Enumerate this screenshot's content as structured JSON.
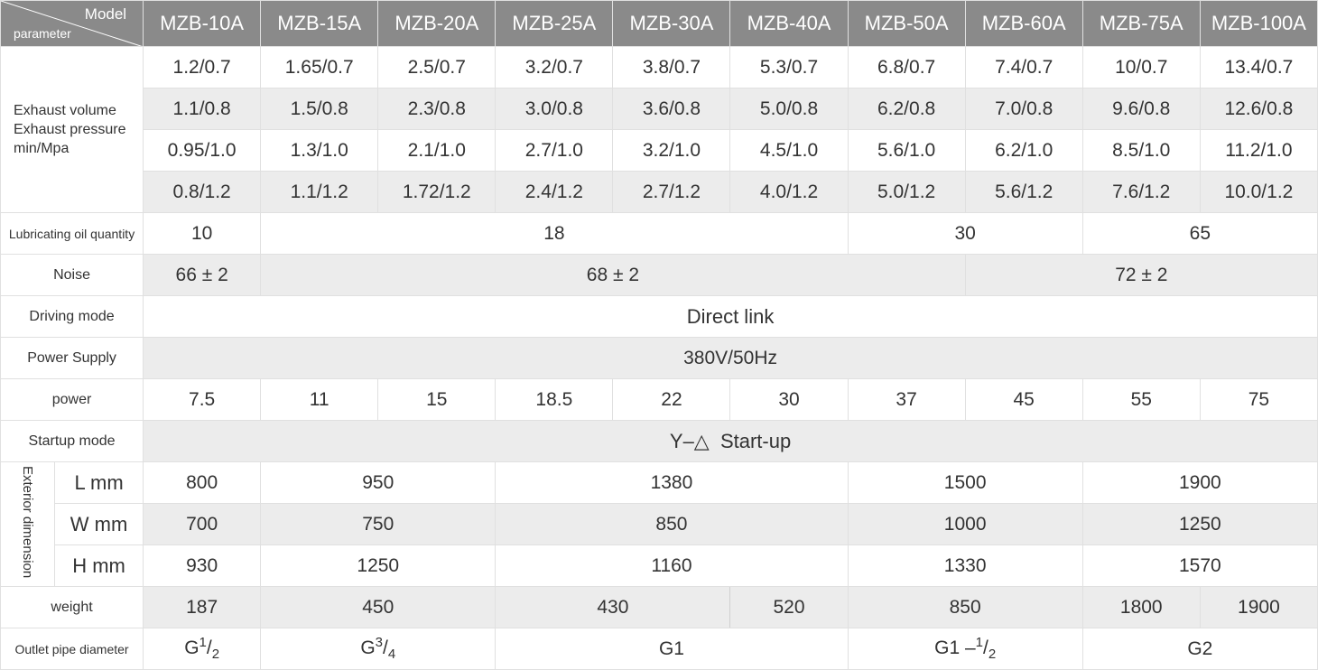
{
  "header": {
    "model_label": "Model",
    "parameter_label": "parameter",
    "models": [
      "MZB-10A",
      "MZB-15A",
      "MZB-20A",
      "MZB-25A",
      "MZB-30A",
      "MZB-40A",
      "MZB-50A",
      "MZB-60A",
      "MZB-75A",
      "MZB-100A"
    ]
  },
  "exhaust": {
    "label_line1": "Exhaust volume",
    "label_line2": "Exhaust pressure",
    "label_line3": "min/Mpa",
    "rows": [
      [
        "1.2/0.7",
        "1.65/0.7",
        "2.5/0.7",
        "3.2/0.7",
        "3.8/0.7",
        "5.3/0.7",
        "6.8/0.7",
        "7.4/0.7",
        "10/0.7",
        "13.4/0.7"
      ],
      [
        "1.1/0.8",
        "1.5/0.8",
        "2.3/0.8",
        "3.0/0.8",
        "3.6/0.8",
        "5.0/0.8",
        "6.2/0.8",
        "7.0/0.8",
        "9.6/0.8",
        "12.6/0.8"
      ],
      [
        "0.95/1.0",
        "1.3/1.0",
        "2.1/1.0",
        "2.7/1.0",
        "3.2/1.0",
        "4.5/1.0",
        "5.6/1.0",
        "6.2/1.0",
        "8.5/1.0",
        "11.2/1.0"
      ],
      [
        "0.8/1.2",
        "1.1/1.2",
        "1.72/1.2",
        "2.4/1.2",
        "2.7/1.2",
        "4.0/1.2",
        "5.0/1.2",
        "5.6/1.2",
        "7.6/1.2",
        "10.0/1.2"
      ]
    ]
  },
  "lubricating": {
    "label": "Lubricating oil quantity",
    "values": [
      "10",
      "18",
      "30",
      "65"
    ]
  },
  "noise": {
    "label": "Noise",
    "values": [
      "66 ± 2",
      "68 ± 2",
      "72 ± 2"
    ]
  },
  "driving": {
    "label": "Driving mode",
    "value": "Direct link"
  },
  "power_supply": {
    "label": "Power Supply",
    "value": "380V/50Hz"
  },
  "power": {
    "label": "power",
    "values": [
      "7.5",
      "11",
      "15",
      "18.5",
      "22",
      "30",
      "37",
      "45",
      "55",
      "75"
    ]
  },
  "startup": {
    "label": "Startup mode",
    "value": "Y–△  Start-up"
  },
  "exterior": {
    "label": "Exterior dimension",
    "l_label": "L mm",
    "l_values": [
      "800",
      "950",
      "1380",
      "1500",
      "1900"
    ],
    "w_label": "W mm",
    "w_values": [
      "700",
      "750",
      "850",
      "1000",
      "1250"
    ],
    "h_label": "H mm",
    "h_values": [
      "930",
      "1250",
      "1160",
      "1330",
      "1570"
    ]
  },
  "weight": {
    "label": "weight",
    "values": [
      "187",
      "450",
      "430",
      "520",
      "850",
      "1800",
      "1900"
    ]
  },
  "outlet": {
    "label": "Outlet pipe diameter",
    "g1_base": "G",
    "g1_num": "1",
    "g1_den": "2",
    "g2_base": "G",
    "g2_num": "3",
    "g2_den": "4",
    "g3": "G1",
    "g4_base": "G1 –",
    "g4_num": "1",
    "g4_den": "2",
    "g5": "G2"
  }
}
